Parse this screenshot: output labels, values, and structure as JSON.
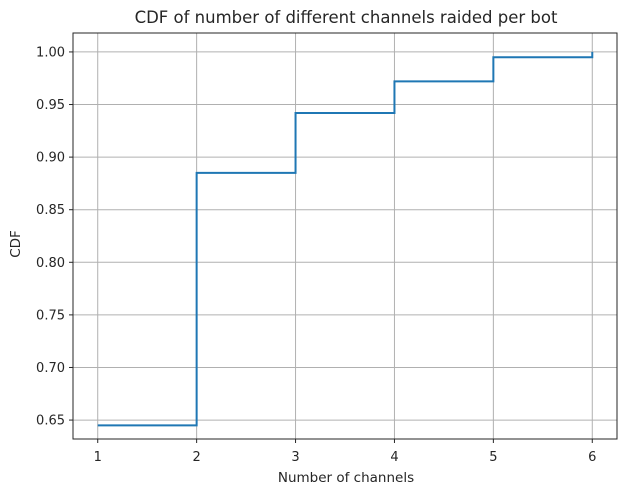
{
  "chart_data": {
    "type": "line",
    "step": "post",
    "title": "CDF of number of different channels raided per bot",
    "xlabel": "Number of channels",
    "ylabel": "CDF",
    "xlim": [
      0.75,
      6.25
    ],
    "ylim": [
      0.632,
      1.018
    ],
    "xticks": [
      1,
      2,
      3,
      4,
      5,
      6
    ],
    "xtick_labels": [
      "1",
      "2",
      "3",
      "4",
      "5",
      "6"
    ],
    "yticks": [
      0.65,
      0.7,
      0.75,
      0.8,
      0.85,
      0.9,
      0.95,
      1.0
    ],
    "ytick_labels": [
      "0.65",
      "0.70",
      "0.75",
      "0.80",
      "0.85",
      "0.90",
      "0.95",
      "1.00"
    ],
    "grid": true,
    "series": [
      {
        "color": "#1f77b4",
        "x": [
          1,
          2,
          3,
          4,
          5,
          6
        ],
        "y": [
          0.645,
          0.885,
          0.942,
          0.972,
          0.995,
          1.0
        ]
      }
    ]
  }
}
